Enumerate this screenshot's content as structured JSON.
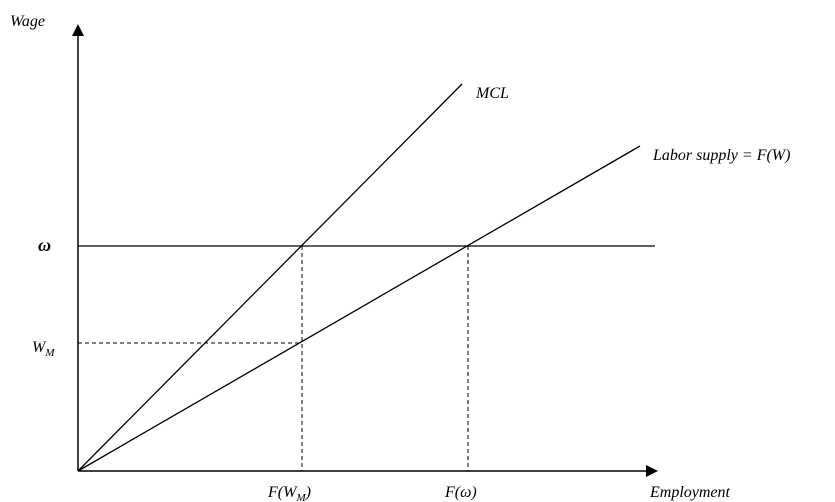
{
  "diagram": {
    "y_axis_label": "Wage",
    "x_axis_label": "Employment",
    "mcl_label": "MCL",
    "supply_label": "Labor supply = F(W)",
    "omega_label": "ω",
    "wm_label_main": "W",
    "wm_label_sub": "M",
    "x_tick_fwm_main": "F(W",
    "x_tick_fwm_sub": "M",
    "x_tick_fwm_close": ")",
    "x_tick_fomega": "F(ω)",
    "line_color": "#000000"
  }
}
